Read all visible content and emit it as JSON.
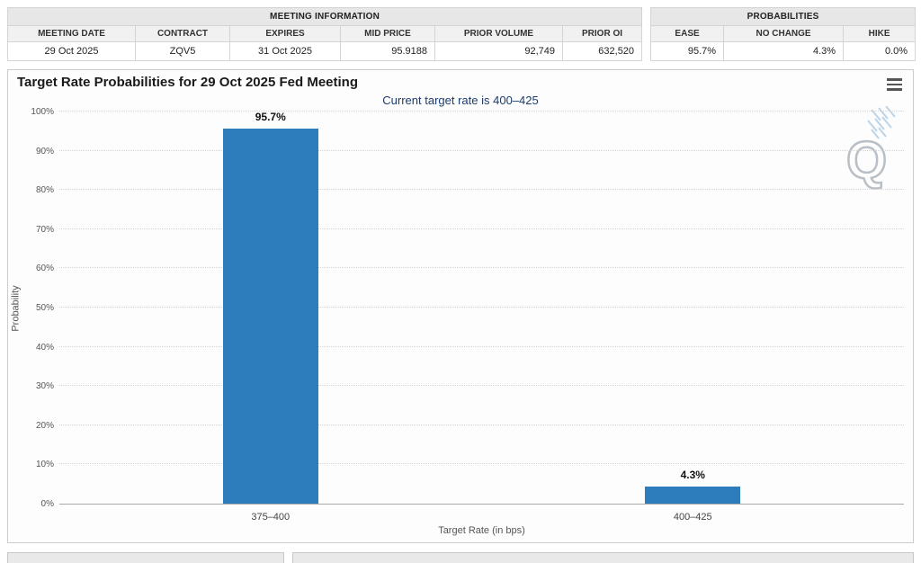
{
  "meeting_info": {
    "title": "MEETING INFORMATION",
    "columns": [
      "MEETING DATE",
      "CONTRACT",
      "EXPIRES",
      "MID PRICE",
      "PRIOR VOLUME",
      "PRIOR OI"
    ],
    "row": [
      "29 Oct 2025",
      "ZQV5",
      "31 Oct 2025",
      "95.9188",
      "92,749",
      "632,520"
    ]
  },
  "probabilities": {
    "title": "PROBABILITIES",
    "columns": [
      "EASE",
      "NO CHANGE",
      "HIKE"
    ],
    "row": [
      "95.7%",
      "4.3%",
      "0.0%"
    ]
  },
  "chart_data": {
    "type": "bar",
    "title": "Target Rate Probabilities for 29 Oct 2025 Fed Meeting",
    "subtitle": "Current target rate is 400–425",
    "categories": [
      "375–400",
      "400–425"
    ],
    "values": [
      95.7,
      4.3
    ],
    "labels": [
      "95.7%",
      "4.3%"
    ],
    "xlabel": "Target Rate (in bps)",
    "ylabel": "Probability",
    "ylim": [
      0,
      100
    ],
    "yticks": [
      "0%",
      "10%",
      "20%",
      "30%",
      "40%",
      "50%",
      "60%",
      "70%",
      "80%",
      "90%",
      "100%"
    ],
    "grid": "horizontal-dotted",
    "bar_color": "#2d7dbd"
  }
}
